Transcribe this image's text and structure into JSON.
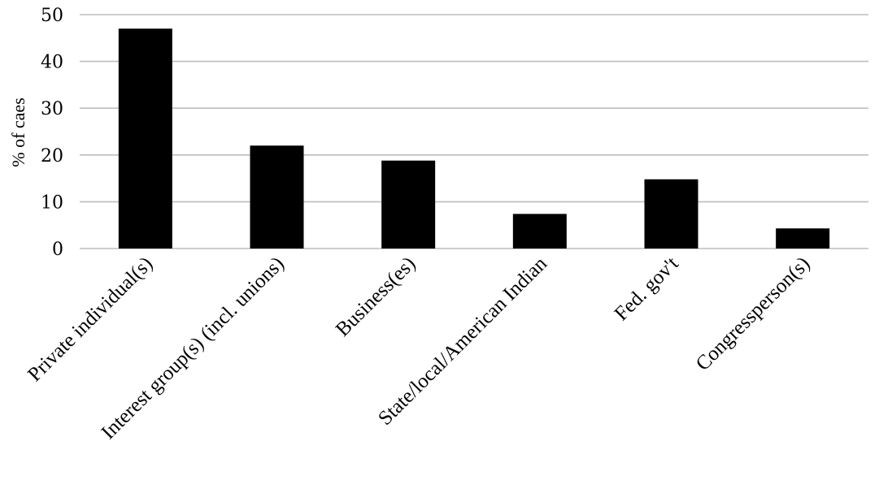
{
  "chart_data": {
    "type": "bar",
    "title": "",
    "xlabel": "",
    "ylabel": "% of caes",
    "categories": [
      "Private individual(s)",
      "Interest group(s) (incl. unions)",
      "Business(es)",
      "State/local/American Indian",
      "Fed. gov't",
      "Congressperson(s)"
    ],
    "values": [
      47,
      22,
      18.8,
      7.4,
      14.8,
      4.3
    ],
    "ylim": [
      0,
      50
    ],
    "yticks": [
      "0",
      "10",
      "20",
      "30",
      "40",
      "50"
    ],
    "grid": true,
    "legend": "none",
    "bar_color": "#000000"
  }
}
